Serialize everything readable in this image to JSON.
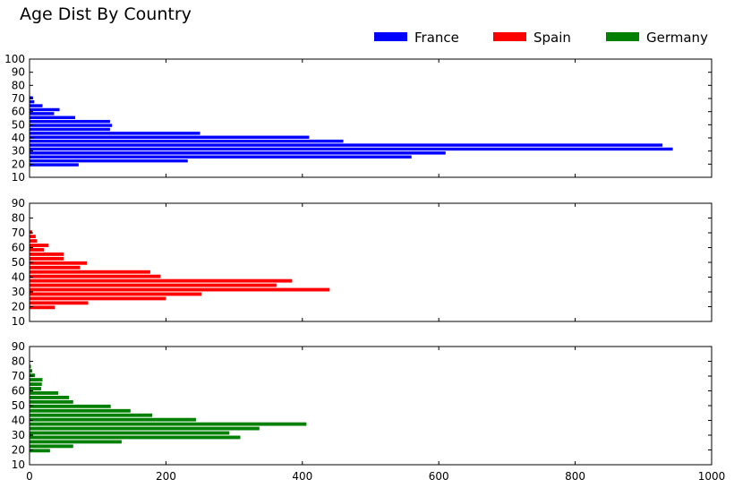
{
  "chart_data": {
    "type": "bar",
    "orientation": "horizontal",
    "title": "Age Dist By Country",
    "legend": {
      "placement": "top-right",
      "entries": [
        {
          "name": "France",
          "color": "#0000ff"
        },
        {
          "name": "Spain",
          "color": "#ff0000"
        },
        {
          "name": "Germany",
          "color": "#008000"
        }
      ]
    },
    "xlim": [
      0,
      1000
    ],
    "xticks": [
      0,
      200,
      400,
      600,
      800,
      1000
    ],
    "grid": false,
    "panels": [
      {
        "series": "France",
        "color": "#0000ff",
        "ylim": [
          10,
          100
        ],
        "yticks": [
          10,
          20,
          30,
          40,
          50,
          60,
          70,
          80,
          90,
          100
        ],
        "bars": [
          {
            "age": 18,
            "value": 72
          },
          {
            "age": 21,
            "value": 232
          },
          {
            "age": 24,
            "value": 560
          },
          {
            "age": 27,
            "value": 610
          },
          {
            "age": 30,
            "value": 943
          },
          {
            "age": 33,
            "value": 928
          },
          {
            "age": 36,
            "value": 460
          },
          {
            "age": 39,
            "value": 410
          },
          {
            "age": 42,
            "value": 250
          },
          {
            "age": 45,
            "value": 118
          },
          {
            "age": 48,
            "value": 121
          },
          {
            "age": 51,
            "value": 118
          },
          {
            "age": 54,
            "value": 67
          },
          {
            "age": 57,
            "value": 36
          },
          {
            "age": 60,
            "value": 44
          },
          {
            "age": 63,
            "value": 19
          },
          {
            "age": 66,
            "value": 7
          },
          {
            "age": 69,
            "value": 5
          }
        ]
      },
      {
        "series": "Spain",
        "color": "#ff0000",
        "ylim": [
          10,
          90
        ],
        "yticks": [
          10,
          20,
          30,
          40,
          50,
          60,
          70,
          80,
          90
        ],
        "bars": [
          {
            "age": 18,
            "value": 37
          },
          {
            "age": 21,
            "value": 86
          },
          {
            "age": 24,
            "value": 200
          },
          {
            "age": 27,
            "value": 252
          },
          {
            "age": 30,
            "value": 440
          },
          {
            "age": 33,
            "value": 362
          },
          {
            "age": 36,
            "value": 385
          },
          {
            "age": 39,
            "value": 192
          },
          {
            "age": 42,
            "value": 177
          },
          {
            "age": 45,
            "value": 74
          },
          {
            "age": 48,
            "value": 84
          },
          {
            "age": 51,
            "value": 50
          },
          {
            "age": 54,
            "value": 50
          },
          {
            "age": 57,
            "value": 21
          },
          {
            "age": 60,
            "value": 28
          },
          {
            "age": 63,
            "value": 11
          },
          {
            "age": 66,
            "value": 9
          },
          {
            "age": 69,
            "value": 4
          }
        ]
      },
      {
        "series": "Germany",
        "color": "#008000",
        "ylim": [
          10,
          90
        ],
        "yticks": [
          10,
          20,
          30,
          40,
          50,
          60,
          70,
          80,
          90
        ],
        "bars": [
          {
            "age": 18,
            "value": 30
          },
          {
            "age": 21,
            "value": 64
          },
          {
            "age": 24,
            "value": 135
          },
          {
            "age": 27,
            "value": 309
          },
          {
            "age": 30,
            "value": 293
          },
          {
            "age": 33,
            "value": 337
          },
          {
            "age": 36,
            "value": 406
          },
          {
            "age": 39,
            "value": 244
          },
          {
            "age": 42,
            "value": 180
          },
          {
            "age": 45,
            "value": 148
          },
          {
            "age": 48,
            "value": 119
          },
          {
            "age": 51,
            "value": 64
          },
          {
            "age": 54,
            "value": 58
          },
          {
            "age": 57,
            "value": 42
          },
          {
            "age": 60,
            "value": 17
          },
          {
            "age": 63,
            "value": 18
          },
          {
            "age": 66,
            "value": 19
          },
          {
            "age": 69,
            "value": 8
          },
          {
            "age": 72,
            "value": 4
          },
          {
            "age": 75,
            "value": 2
          }
        ]
      }
    ]
  }
}
